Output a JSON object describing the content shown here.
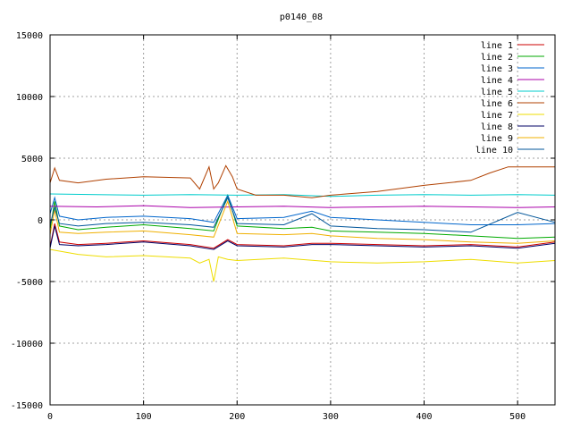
{
  "chart_data": {
    "type": "line",
    "title": "p0140_08",
    "xlabel": "",
    "ylabel": "",
    "xlim": [
      0,
      540
    ],
    "ylim": [
      -15000,
      15000
    ],
    "xticks": [
      0,
      100,
      200,
      300,
      400,
      500
    ],
    "yticks": [
      -15000,
      -10000,
      -5000,
      0,
      5000,
      10000,
      15000
    ],
    "grid": true,
    "legend_position": "top-right",
    "series": [
      {
        "name": "line 1",
        "color": "#cc0000",
        "x": [
          0,
          5,
          10,
          30,
          60,
          100,
          150,
          175,
          190,
          200,
          250,
          280,
          300,
          350,
          400,
          450,
          500,
          540
        ],
        "y": [
          -2200,
          -300,
          -1800,
          -2000,
          -1900,
          -1700,
          -2000,
          -2300,
          -1600,
          -2000,
          -2100,
          -1900,
          -1900,
          -2000,
          -2100,
          -2000,
          -2200,
          -1800
        ]
      },
      {
        "name": "line 2",
        "color": "#00aa00",
        "x": [
          0,
          5,
          10,
          30,
          60,
          100,
          150,
          175,
          190,
          200,
          250,
          280,
          300,
          350,
          400,
          450,
          500,
          540
        ],
        "y": [
          -800,
          1500,
          -500,
          -800,
          -600,
          -400,
          -700,
          -900,
          2000,
          -500,
          -700,
          -600,
          -900,
          -1000,
          -1100,
          -1300,
          -1500,
          -1400
        ]
      },
      {
        "name": "line 3",
        "color": "#0066cc",
        "x": [
          0,
          5,
          10,
          30,
          60,
          100,
          150,
          175,
          190,
          200,
          250,
          280,
          300,
          350,
          400,
          450,
          500,
          540
        ],
        "y": [
          500,
          1800,
          300,
          0,
          200,
          300,
          100,
          -200,
          2000,
          100,
          200,
          700,
          200,
          0,
          -200,
          -400,
          -400,
          -300
        ]
      },
      {
        "name": "line 4",
        "color": "#aa00aa",
        "x": [
          0,
          50,
          100,
          150,
          200,
          250,
          300,
          350,
          400,
          450,
          500,
          540
        ],
        "y": [
          1100,
          1050,
          1150,
          1000,
          1050,
          1100,
          1000,
          1050,
          1100,
          1050,
          1000,
          1050
        ]
      },
      {
        "name": "line 5",
        "color": "#00cccc",
        "x": [
          0,
          50,
          100,
          150,
          200,
          250,
          300,
          350,
          400,
          450,
          500,
          540
        ],
        "y": [
          2100,
          2050,
          2000,
          2050,
          2000,
          2050,
          1900,
          2000,
          2050,
          2000,
          2050,
          2000
        ]
      },
      {
        "name": "line 6",
        "color": "#b04000",
        "x": [
          0,
          5,
          10,
          30,
          60,
          100,
          150,
          160,
          170,
          175,
          180,
          188,
          195,
          200,
          220,
          250,
          280,
          300,
          350,
          400,
          450,
          470,
          490,
          510,
          540
        ],
        "y": [
          3000,
          4200,
          3200,
          3000,
          3300,
          3500,
          3400,
          2500,
          4300,
          2500,
          3000,
          4400,
          3500,
          2500,
          2000,
          2000,
          1800,
          2000,
          2300,
          2800,
          3200,
          3800,
          4300,
          4300,
          4300
        ]
      },
      {
        "name": "line 7",
        "color": "#eedd00",
        "x": [
          0,
          30,
          60,
          100,
          150,
          160,
          170,
          175,
          180,
          190,
          200,
          250,
          300,
          350,
          400,
          450,
          500,
          540
        ],
        "y": [
          -2400,
          -2800,
          -3000,
          -2900,
          -3100,
          -3500,
          -3200,
          -5000,
          -3000,
          -3200,
          -3300,
          -3100,
          -3400,
          -3500,
          -3400,
          -3200,
          -3500,
          -3300
        ]
      },
      {
        "name": "line 8",
        "color": "#000066",
        "x": [
          0,
          5,
          10,
          30,
          60,
          100,
          150,
          175,
          190,
          200,
          250,
          280,
          300,
          350,
          400,
          450,
          500,
          540
        ],
        "y": [
          -2300,
          -500,
          -2000,
          -2100,
          -2000,
          -1800,
          -2100,
          -2400,
          -1700,
          -2100,
          -2200,
          -2000,
          -2000,
          -2100,
          -2200,
          -2100,
          -2300,
          -1900
        ]
      },
      {
        "name": "line 9",
        "color": "#f0b000",
        "x": [
          0,
          5,
          10,
          30,
          60,
          100,
          150,
          175,
          190,
          200,
          250,
          280,
          300,
          350,
          400,
          450,
          500,
          540
        ],
        "y": [
          -1200,
          800,
          -1000,
          -1100,
          -1000,
          -900,
          -1200,
          -1400,
          1500,
          -1100,
          -1200,
          -1100,
          -1300,
          -1500,
          -1600,
          -1800,
          -1900,
          -1700
        ]
      },
      {
        "name": "line 10",
        "color": "#005599",
        "x": [
          0,
          5,
          10,
          30,
          60,
          100,
          150,
          175,
          190,
          200,
          250,
          280,
          300,
          350,
          400,
          450,
          500,
          540
        ],
        "y": [
          -400,
          1000,
          -300,
          -500,
          -300,
          -200,
          -400,
          -600,
          1800,
          -300,
          -400,
          500,
          -500,
          -700,
          -800,
          -1000,
          600,
          -200
        ]
      }
    ]
  }
}
